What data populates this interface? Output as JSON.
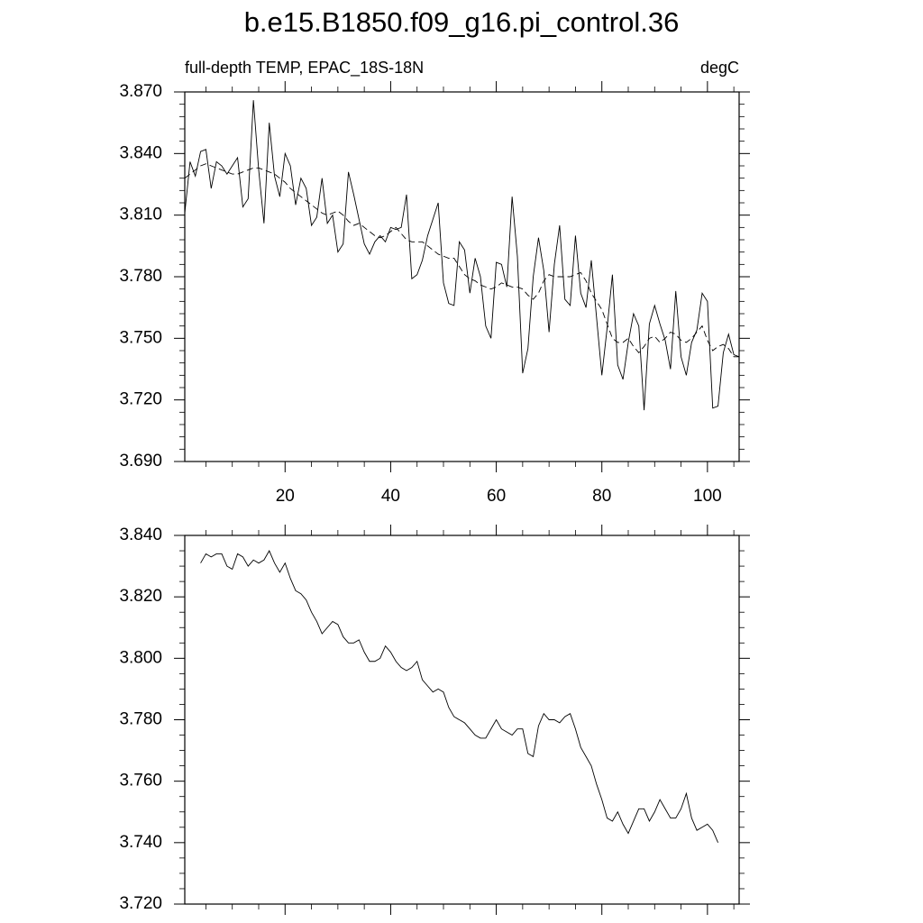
{
  "chart_data": [
    {
      "type": "line",
      "title": "b.e15.B1850.f09_g16.pi_control.36",
      "subtitle_left": "full-depth TEMP, EPAC_18S-18N",
      "subtitle_right": "degC",
      "xlim": [
        1,
        106
      ],
      "xticks": [
        20,
        40,
        60,
        80,
        100
      ],
      "ylim": [
        3.69,
        3.87
      ],
      "yticks": [
        {
          "value": 3.69,
          "label": "3.690"
        },
        {
          "value": 3.72,
          "label": "3.720"
        },
        {
          "value": 3.75,
          "label": "3.750"
        },
        {
          "value": 3.78,
          "label": "3.780"
        },
        {
          "value": 3.81,
          "label": "3.810"
        },
        {
          "value": 3.84,
          "label": "3.840"
        },
        {
          "value": 3.87,
          "label": "3.870"
        }
      ],
      "x": [
        1,
        2,
        3,
        4,
        5,
        6,
        7,
        8,
        9,
        10,
        11,
        12,
        13,
        14,
        15,
        16,
        17,
        18,
        19,
        20,
        21,
        22,
        23,
        24,
        25,
        26,
        27,
        28,
        29,
        30,
        31,
        32,
        33,
        34,
        35,
        36,
        37,
        38,
        39,
        40,
        41,
        42,
        43,
        44,
        45,
        46,
        47,
        48,
        49,
        50,
        51,
        52,
        53,
        54,
        55,
        56,
        57,
        58,
        59,
        60,
        61,
        62,
        63,
        64,
        65,
        66,
        67,
        68,
        69,
        70,
        71,
        72,
        73,
        74,
        75,
        76,
        77,
        78,
        79,
        80,
        81,
        82,
        83,
        84,
        85,
        86,
        87,
        88,
        89,
        90,
        91,
        92,
        93,
        94,
        95,
        96,
        97,
        98,
        99,
        100,
        101,
        102,
        103,
        104,
        105,
        106
      ],
      "series": [
        {
          "color": "#000000",
          "dash": "solid",
          "values": [
            3.811,
            3.836,
            3.829,
            3.841,
            3.842,
            3.823,
            3.836,
            3.834,
            3.83,
            3.834,
            3.838,
            3.814,
            3.818,
            3.866,
            3.832,
            3.806,
            3.855,
            3.829,
            3.819,
            3.84,
            3.834,
            3.815,
            3.828,
            3.823,
            3.805,
            3.809,
            3.828,
            3.806,
            3.81,
            3.792,
            3.796,
            3.831,
            3.82,
            3.808,
            3.796,
            3.791,
            3.797,
            3.8,
            3.797,
            3.804,
            3.803,
            3.804,
            3.82,
            3.779,
            3.781,
            3.788,
            3.8,
            3.808,
            3.816,
            3.777,
            3.767,
            3.766,
            3.797,
            3.793,
            3.772,
            3.789,
            3.78,
            3.756,
            3.75,
            3.787,
            3.786,
            3.775,
            3.819,
            3.79,
            3.733,
            3.745,
            3.78,
            3.799,
            3.783,
            3.753,
            3.786,
            3.805,
            3.769,
            3.766,
            3.8,
            3.772,
            3.765,
            3.788,
            3.76,
            3.732,
            3.755,
            3.781,
            3.737,
            3.73,
            3.748,
            3.762,
            3.756,
            3.715,
            3.757,
            3.766,
            3.757,
            3.749,
            3.735,
            3.773,
            3.741,
            3.732,
            3.748,
            3.754,
            3.772,
            3.768,
            3.716,
            3.717,
            3.743,
            3.752,
            3.742,
            3.741
          ]
        },
        {
          "color": "#000000",
          "dash": "dashed",
          "values": [
            3.828,
            3.83,
            3.832,
            3.834,
            3.835,
            3.834,
            3.833,
            3.832,
            3.831,
            3.83,
            3.83,
            3.831,
            3.832,
            3.833,
            3.833,
            3.832,
            3.831,
            3.83,
            3.828,
            3.826,
            3.823,
            3.821,
            3.819,
            3.817,
            3.815,
            3.813,
            3.811,
            3.81,
            3.811,
            3.812,
            3.81,
            3.807,
            3.805,
            3.806,
            3.804,
            3.802,
            3.8,
            3.799,
            3.8,
            3.802,
            3.804,
            3.801,
            3.798,
            3.797,
            3.797,
            3.797,
            3.795,
            3.793,
            3.791,
            3.79,
            3.789,
            3.789,
            3.785,
            3.781,
            3.779,
            3.778,
            3.776,
            3.775,
            3.774,
            3.775,
            3.777,
            3.776,
            3.775,
            3.775,
            3.774,
            3.771,
            3.769,
            3.772,
            3.778,
            3.781,
            3.78,
            3.78,
            3.78,
            3.78,
            3.781,
            3.782,
            3.778,
            3.772,
            3.768,
            3.764,
            3.757,
            3.75,
            3.748,
            3.748,
            3.75,
            3.746,
            3.743,
            3.746,
            3.75,
            3.751,
            3.748,
            3.75,
            3.753,
            3.752,
            3.749,
            3.748,
            3.75,
            3.753,
            3.756,
            3.749,
            3.744,
            3.746,
            3.747,
            3.745,
            3.741,
            3.741
          ]
        }
      ]
    },
    {
      "type": "line",
      "xlim": [
        1,
        106
      ],
      "xticks": [
        20,
        40,
        60,
        80,
        100
      ],
      "ylim": [
        3.72,
        3.84
      ],
      "yticks": [
        {
          "value": 3.72,
          "label": "3.720"
        },
        {
          "value": 3.74,
          "label": "3.740"
        },
        {
          "value": 3.76,
          "label": "3.760"
        },
        {
          "value": 3.78,
          "label": "3.780"
        },
        {
          "value": 3.8,
          "label": "3.800"
        },
        {
          "value": 3.82,
          "label": "3.820"
        },
        {
          "value": 3.84,
          "label": "3.840"
        }
      ],
      "x": [
        4,
        5,
        6,
        7,
        8,
        9,
        10,
        11,
        12,
        13,
        14,
        15,
        16,
        17,
        18,
        19,
        20,
        21,
        22,
        23,
        24,
        25,
        26,
        27,
        28,
        29,
        30,
        31,
        32,
        33,
        34,
        35,
        36,
        37,
        38,
        39,
        40,
        41,
        42,
        43,
        44,
        45,
        46,
        47,
        48,
        49,
        50,
        51,
        52,
        53,
        54,
        55,
        56,
        57,
        58,
        59,
        60,
        61,
        62,
        63,
        64,
        65,
        66,
        67,
        68,
        69,
        70,
        71,
        72,
        73,
        74,
        75,
        76,
        77,
        78,
        79,
        80,
        81,
        82,
        83,
        84,
        85,
        86,
        87,
        88,
        89,
        90,
        91,
        92,
        93,
        94,
        95,
        96,
        97,
        98,
        99,
        100,
        101,
        102
      ],
      "series": [
        {
          "color": "#000000",
          "dash": "solid",
          "values": [
            3.831,
            3.834,
            3.833,
            3.834,
            3.834,
            3.83,
            3.829,
            3.834,
            3.833,
            3.83,
            3.832,
            3.831,
            3.832,
            3.835,
            3.831,
            3.828,
            3.831,
            3.826,
            3.822,
            3.821,
            3.819,
            3.815,
            3.812,
            3.808,
            3.81,
            3.812,
            3.811,
            3.807,
            3.805,
            3.805,
            3.806,
            3.802,
            3.799,
            3.799,
            3.8,
            3.804,
            3.802,
            3.799,
            3.797,
            3.796,
            3.797,
            3.799,
            3.793,
            3.791,
            3.789,
            3.79,
            3.789,
            3.784,
            3.781,
            3.78,
            3.779,
            3.777,
            3.775,
            3.774,
            3.774,
            3.777,
            3.78,
            3.777,
            3.776,
            3.775,
            3.777,
            3.777,
            3.769,
            3.768,
            3.778,
            3.782,
            3.78,
            3.78,
            3.779,
            3.781,
            3.782,
            3.777,
            3.771,
            3.768,
            3.765,
            3.759,
            3.754,
            3.748,
            3.747,
            3.75,
            3.746,
            3.743,
            3.747,
            3.751,
            3.751,
            3.747,
            3.75,
            3.754,
            3.751,
            3.748,
            3.748,
            3.751,
            3.756,
            3.748,
            3.744,
            3.745,
            3.746,
            3.744,
            3.74
          ]
        }
      ]
    }
  ]
}
